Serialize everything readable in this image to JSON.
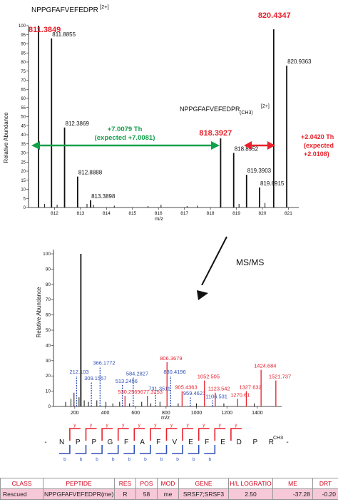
{
  "colors": {
    "red": "#e8212b",
    "blue": "#3050b8",
    "green": "#13a04a",
    "black": "#111111",
    "table_fill": "#f7c8d8"
  },
  "chart_data": [
    {
      "type": "bar",
      "name": "ms1-spectrum",
      "xlabel": "m/z",
      "ylabel": "Relative Abundance",
      "xlim": [
        811.0,
        821.4
      ],
      "ylim": [
        0,
        100
      ],
      "x_ticks": [
        "812",
        "813",
        "814",
        "815",
        "816",
        "817",
        "818",
        "819",
        "820",
        "821"
      ],
      "y_ticks": [
        "0",
        "5",
        "10",
        "15",
        "20",
        "25",
        "30",
        "35",
        "40",
        "45",
        "50",
        "55",
        "60",
        "65",
        "70",
        "75",
        "80",
        "85",
        "90",
        "95",
        "100"
      ],
      "peaks": [
        {
          "mz": 811.3849,
          "intensity": 100,
          "label": "811.3849",
          "color": "red",
          "big": true
        },
        {
          "mz": 811.8855,
          "intensity": 93,
          "label": "811.8855",
          "color": "black"
        },
        {
          "mz": 812.3869,
          "intensity": 44,
          "label": "812.3869",
          "color": "black"
        },
        {
          "mz": 812.8888,
          "intensity": 17,
          "label": "812.8888",
          "color": "black"
        },
        {
          "mz": 813.3898,
          "intensity": 4,
          "label": "813.3898",
          "color": "black"
        },
        {
          "mz": 818.3927,
          "intensity": 38,
          "label": "818.3927",
          "color": "red",
          "big": true
        },
        {
          "mz": 818.8952,
          "intensity": 30,
          "label": "818.8952",
          "color": "black"
        },
        {
          "mz": 819.3903,
          "intensity": 18,
          "label": "819.3903",
          "color": "black"
        },
        {
          "mz": 819.8915,
          "intensity": 11,
          "label": "819.8915",
          "color": "black"
        },
        {
          "mz": 820.4347,
          "intensity": 98,
          "label": "820.4347",
          "color": "red",
          "big": true
        },
        {
          "mz": 820.9363,
          "intensity": 78,
          "label": "820.9363",
          "color": "black"
        }
      ],
      "minor_peaks": [
        {
          "mz": 811.62,
          "intensity": 2
        },
        {
          "mz": 812.1,
          "intensity": 1.5
        },
        {
          "mz": 813.25,
          "intensity": 2
        },
        {
          "mz": 813.5,
          "intensity": 1.5
        },
        {
          "mz": 814.3,
          "intensity": 1.0
        },
        {
          "mz": 815.6,
          "intensity": 0.8
        },
        {
          "mz": 816.1,
          "intensity": 1.5
        },
        {
          "mz": 817.1,
          "intensity": 0.8
        },
        {
          "mz": 817.5,
          "intensity": 1.0
        },
        {
          "mz": 819.1,
          "intensity": 2
        },
        {
          "mz": 820.1,
          "intensity": 2.5
        }
      ],
      "annotations": {
        "light_title": "NPPGFAFVEFEDPR",
        "light_charge": "[2+]",
        "heavy_title": "NPPGFAFVEFEDPR",
        "heavy_mod": "(CH3)",
        "heavy_charge": "[2+]",
        "shift_text_1": "+7.0079 Th",
        "shift_text_2": "(expected +7.0081)",
        "methyl_text_1": "+2.0420 Th",
        "methyl_text_2": "(expected",
        "methyl_text_3": "+2.0108)"
      }
    },
    {
      "type": "bar",
      "name": "ms2-spectrum",
      "xlabel": "m/z",
      "ylabel": "Relative Abundance",
      "xlim": [
        60,
        1560
      ],
      "ylim": [
        0,
        100
      ],
      "x_ticks": [
        "200",
        "400",
        "600",
        "800",
        "1000",
        "1200",
        "1400"
      ],
      "y_ticks": [
        "0",
        "10",
        "20",
        "30",
        "40",
        "50",
        "60",
        "70",
        "80",
        "90",
        "100"
      ],
      "peaks": [
        {
          "mz": 212.103,
          "intensity": 20,
          "label": "212.103",
          "color": "blue"
        },
        {
          "mz": 240,
          "intensity": 100,
          "label": "",
          "color": "black"
        },
        {
          "mz": 309.1557,
          "intensity": 16,
          "label": "309.1557",
          "color": "blue"
        },
        {
          "mz": 366.1772,
          "intensity": 26,
          "label": "366.1772",
          "color": "blue"
        },
        {
          "mz": 513.2456,
          "intensity": 14,
          "label": "513.2456",
          "color": "blue"
        },
        {
          "mz": 530.2569,
          "intensity": 7,
          "label": "530.2569",
          "color": "red"
        },
        {
          "mz": 584.2827,
          "intensity": 19,
          "label": "584.2827",
          "color": "blue"
        },
        {
          "mz": 677.3253,
          "intensity": 7,
          "label": "677.3253",
          "color": "red"
        },
        {
          "mz": 731.3511,
          "intensity": 9,
          "label": "731.3511",
          "color": "blue"
        },
        {
          "mz": 806.3679,
          "intensity": 29,
          "label": "806.3679",
          "color": "red"
        },
        {
          "mz": 830.4196,
          "intensity": 20,
          "label": "830.4196",
          "color": "blue"
        },
        {
          "mz": 905.4363,
          "intensity": 10,
          "label": "905.4363",
          "color": "red"
        },
        {
          "mz": 959.4621,
          "intensity": 6,
          "label": "959.4621",
          "color": "blue"
        },
        {
          "mz": 1052.505,
          "intensity": 17,
          "label": "1052.505",
          "color": "red"
        },
        {
          "mz": 1106.531,
          "intensity": 4,
          "label": "1106.531",
          "color": "blue"
        },
        {
          "mz": 1123.542,
          "intensity": 9,
          "label": "1123.542",
          "color": "red"
        },
        {
          "mz": 1270.61,
          "intensity": 5,
          "label": "1270.61",
          "color": "red"
        },
        {
          "mz": 1327.632,
          "intensity": 10,
          "label": "1327.632",
          "color": "red"
        },
        {
          "mz": 1424.684,
          "intensity": 24,
          "label": "1424.684",
          "color": "red"
        },
        {
          "mz": 1521.737,
          "intensity": 17,
          "label": "1521.737",
          "color": "red"
        }
      ],
      "minor_peaks": [
        {
          "mz": 140,
          "intensity": 3
        },
        {
          "mz": 175,
          "intensity": 5
        },
        {
          "mz": 195,
          "intensity": 9
        },
        {
          "mz": 228,
          "intensity": 6
        },
        {
          "mz": 262,
          "intensity": 4
        },
        {
          "mz": 290,
          "intensity": 3
        },
        {
          "mz": 345,
          "intensity": 4
        },
        {
          "mz": 405,
          "intensity": 3
        },
        {
          "mz": 450,
          "intensity": 2
        },
        {
          "mz": 495,
          "intensity": 3
        },
        {
          "mz": 560,
          "intensity": 2
        },
        {
          "mz": 640,
          "intensity": 3
        },
        {
          "mz": 700,
          "intensity": 2
        },
        {
          "mz": 760,
          "intensity": 3
        },
        {
          "mz": 880,
          "intensity": 2
        },
        {
          "mz": 1000,
          "intensity": 2
        },
        {
          "mz": 1180,
          "intensity": 2
        },
        {
          "mz": 1380,
          "intensity": 2
        }
      ]
    }
  ],
  "msms_label": "MS/MS",
  "sequence": {
    "residues": [
      "-",
      "N",
      "P",
      "P",
      "G",
      "F",
      "A",
      "F",
      "V",
      "E",
      "F",
      "E",
      "D",
      "P",
      "R",
      "-"
    ],
    "mod_label": "CH3",
    "y_label": "y",
    "b_label": "b",
    "y_breaks": [
      1,
      2,
      3,
      4,
      5,
      6,
      7,
      8,
      9,
      10,
      11
    ],
    "b_breaks": [
      1,
      2,
      3,
      4,
      5,
      6,
      7,
      8,
      9,
      10
    ]
  },
  "table": {
    "headers": [
      "CLASS",
      "PEPTIDE",
      "RES",
      "POS",
      "MOD",
      "GENE",
      "H/L LOGRATIO",
      "ME",
      "DRT"
    ],
    "row": [
      "Rescued",
      "NPPGFAFVEFEDPR(me)",
      "R",
      "58",
      "me",
      "SRSF7;SRSF3",
      "2.50",
      "-37.28",
      "-0.20"
    ]
  }
}
